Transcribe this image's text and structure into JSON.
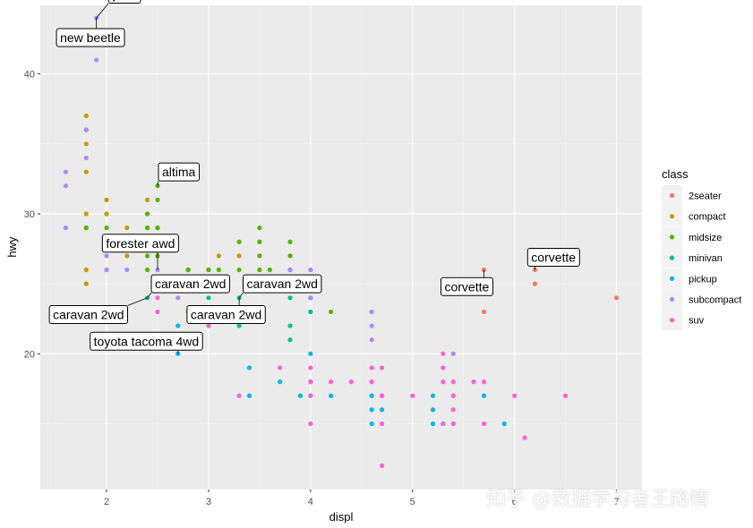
{
  "chart_data": {
    "type": "scatter",
    "xlabel": "displ",
    "ylabel": "hwy",
    "xlim": [
      1.35,
      7.25
    ],
    "ylim": [
      10.3,
      44.9
    ],
    "x_ticks": [
      2,
      3,
      4,
      5,
      6,
      7
    ],
    "y_ticks": [
      20,
      30,
      40
    ],
    "grid": true,
    "legend": {
      "title": "class",
      "placement": "right"
    },
    "series": [
      {
        "name": "2seater",
        "color": "#F8766D",
        "points": [
          [
            5.7,
            26
          ],
          [
            5.7,
            23
          ],
          [
            6.2,
            26
          ],
          [
            6.2,
            25
          ],
          [
            7.0,
            24
          ]
        ]
      },
      {
        "name": "compact",
        "color": "#C49A00",
        "points": [
          [
            1.8,
            29
          ],
          [
            1.8,
            30
          ],
          [
            1.8,
            26
          ],
          [
            1.8,
            25
          ],
          [
            1.8,
            33
          ],
          [
            1.8,
            35
          ],
          [
            1.8,
            37
          ],
          [
            1.8,
            36
          ],
          [
            2.0,
            31
          ],
          [
            2.0,
            30
          ],
          [
            2.0,
            28
          ],
          [
            2.2,
            29
          ],
          [
            2.2,
            27
          ],
          [
            2.4,
            31
          ],
          [
            2.4,
            30
          ],
          [
            2.4,
            29
          ],
          [
            2.5,
            29
          ],
          [
            2.5,
            27
          ],
          [
            2.8,
            26
          ],
          [
            2.8,
            25
          ],
          [
            2.8,
            23
          ],
          [
            3.0,
            26
          ],
          [
            3.1,
            27
          ],
          [
            3.3,
            27
          ]
        ]
      },
      {
        "name": "midsize",
        "color": "#53B400",
        "points": [
          [
            1.8,
            29
          ],
          [
            2.0,
            29
          ],
          [
            2.4,
            30
          ],
          [
            2.4,
            29
          ],
          [
            2.4,
            27
          ],
          [
            2.4,
            26
          ],
          [
            2.5,
            32
          ],
          [
            2.5,
            31
          ],
          [
            2.5,
            29
          ],
          [
            2.5,
            27
          ],
          [
            2.8,
            26
          ],
          [
            3.0,
            26
          ],
          [
            3.1,
            26
          ],
          [
            3.3,
            28
          ],
          [
            3.3,
            26
          ],
          [
            3.5,
            29
          ],
          [
            3.5,
            28
          ],
          [
            3.5,
            27
          ],
          [
            3.5,
            26
          ],
          [
            3.6,
            26
          ],
          [
            3.8,
            28
          ],
          [
            3.8,
            27
          ],
          [
            3.8,
            26
          ],
          [
            4.2,
            23
          ]
        ]
      },
      {
        "name": "minivan",
        "color": "#00C094",
        "points": [
          [
            2.4,
            24
          ],
          [
            3.0,
            24
          ],
          [
            3.3,
            24
          ],
          [
            3.3,
            22
          ],
          [
            3.8,
            24
          ],
          [
            3.8,
            22
          ],
          [
            3.8,
            21
          ],
          [
            4.0,
            24
          ],
          [
            4.0,
            23
          ]
        ]
      },
      {
        "name": "pickup",
        "color": "#00B6EB",
        "points": [
          [
            2.7,
            22
          ],
          [
            2.7,
            20
          ],
          [
            3.4,
            19
          ],
          [
            3.4,
            17
          ],
          [
            3.7,
            18
          ],
          [
            3.9,
            17
          ],
          [
            4.0,
            20
          ],
          [
            4.0,
            18
          ],
          [
            4.0,
            17
          ],
          [
            4.2,
            17
          ],
          [
            4.6,
            17
          ],
          [
            4.6,
            16
          ],
          [
            4.6,
            15
          ],
          [
            4.7,
            17
          ],
          [
            4.7,
            16
          ],
          [
            5.2,
            17
          ],
          [
            5.2,
            16
          ],
          [
            5.2,
            15
          ],
          [
            5.3,
            15
          ],
          [
            5.4,
            17
          ],
          [
            5.4,
            15
          ],
          [
            5.7,
            17
          ],
          [
            5.9,
            15
          ]
        ]
      },
      {
        "name": "subcompact",
        "color": "#A58AFF",
        "points": [
          [
            1.6,
            33
          ],
          [
            1.6,
            32
          ],
          [
            1.6,
            29
          ],
          [
            1.8,
            34
          ],
          [
            1.8,
            36
          ],
          [
            1.9,
            44
          ],
          [
            1.9,
            41
          ],
          [
            2.0,
            27
          ],
          [
            2.0,
            26
          ],
          [
            2.2,
            26
          ],
          [
            2.5,
            26
          ],
          [
            2.7,
            24
          ],
          [
            3.8,
            26
          ],
          [
            4.0,
            26
          ],
          [
            4.0,
            24
          ],
          [
            4.6,
            23
          ],
          [
            4.6,
            22
          ],
          [
            4.6,
            21
          ],
          [
            5.4,
            20
          ]
        ]
      },
      {
        "name": "suv",
        "color": "#FB61D7",
        "points": [
          [
            2.5,
            24
          ],
          [
            2.5,
            23
          ],
          [
            3.0,
            22
          ],
          [
            3.3,
            17
          ],
          [
            3.7,
            19
          ],
          [
            4.0,
            19
          ],
          [
            4.0,
            18
          ],
          [
            4.0,
            17
          ],
          [
            4.0,
            15
          ],
          [
            4.2,
            18
          ],
          [
            4.4,
            18
          ],
          [
            4.6,
            19
          ],
          [
            4.6,
            18
          ],
          [
            4.7,
            19
          ],
          [
            4.7,
            17
          ],
          [
            4.7,
            15
          ],
          [
            4.7,
            12
          ],
          [
            5.0,
            17
          ],
          [
            5.3,
            20
          ],
          [
            5.3,
            19
          ],
          [
            5.3,
            18
          ],
          [
            5.3,
            15
          ],
          [
            5.4,
            18
          ],
          [
            5.4,
            17
          ],
          [
            5.4,
            16
          ],
          [
            5.4,
            15
          ],
          [
            5.6,
            18
          ],
          [
            5.7,
            18
          ],
          [
            5.7,
            15
          ],
          [
            6.0,
            17
          ],
          [
            6.1,
            14
          ],
          [
            6.5,
            17
          ]
        ]
      }
    ],
    "annotations": [
      {
        "label": "jetta",
        "point": [
          1.9,
          44
        ],
        "label_at": [
          2.02,
          45.7
        ]
      },
      {
        "label": "new beetle",
        "point": [
          1.9,
          44
        ],
        "label_at": [
          1.5,
          42.6
        ]
      },
      {
        "label": "altima",
        "point": [
          2.5,
          32
        ],
        "label_at": [
          2.5,
          33.0
        ]
      },
      {
        "label": "forester awd",
        "point": [
          2.5,
          26
        ],
        "label_at": [
          1.95,
          27.9
        ]
      },
      {
        "label": "caravan 2wd",
        "point": [
          2.4,
          24
        ],
        "label_at": [
          2.43,
          25.0
        ]
      },
      {
        "label": "caravan 2wd",
        "point": [
          3.3,
          24
        ],
        "label_at": [
          3.33,
          25.0
        ]
      },
      {
        "label": "caravan 2wd",
        "point": [
          2.4,
          24
        ],
        "label_at": [
          1.43,
          22.8
        ]
      },
      {
        "label": "caravan 2wd",
        "point": [
          3.3,
          24
        ],
        "label_at": [
          2.78,
          22.8
        ]
      },
      {
        "label": "toyota tacoma 4wd",
        "point": [
          2.7,
          20
        ],
        "label_at": [
          1.83,
          20.9
        ]
      },
      {
        "label": "corvette",
        "point": [
          6.2,
          26
        ],
        "label_at": [
          6.12,
          26.9
        ]
      },
      {
        "label": "corvette",
        "point": [
          5.7,
          26
        ],
        "label_at": [
          5.27,
          24.8
        ]
      }
    ]
  },
  "watermark": "知乎 @数据学习者王路情"
}
